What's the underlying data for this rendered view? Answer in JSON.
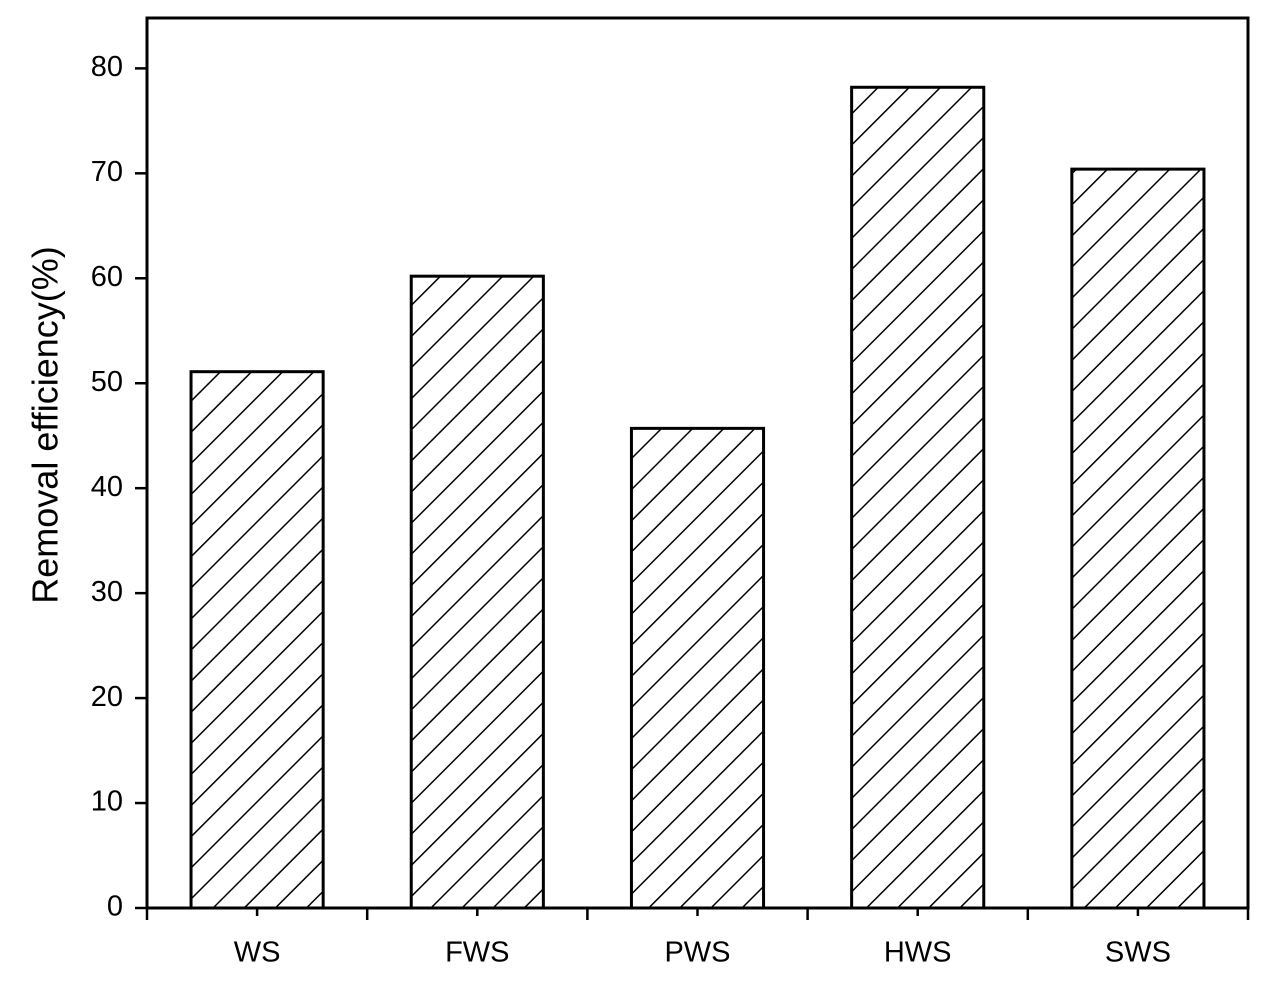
{
  "chart_data": {
    "type": "bar",
    "y_label": "Removal efficiency(%)",
    "categories": [
      "WS",
      "FWS",
      "PWS",
      "HWS",
      "SWS"
    ],
    "values": [
      51.1,
      60.2,
      45.7,
      78.2,
      70.4
    ],
    "color": "#ffffff",
    "hatch": "#000000",
    "ylim": [
      0,
      84.8
    ],
    "yticks": [
      0,
      10,
      20,
      30,
      40,
      50,
      60,
      70,
      80
    ],
    "grid": false
  }
}
